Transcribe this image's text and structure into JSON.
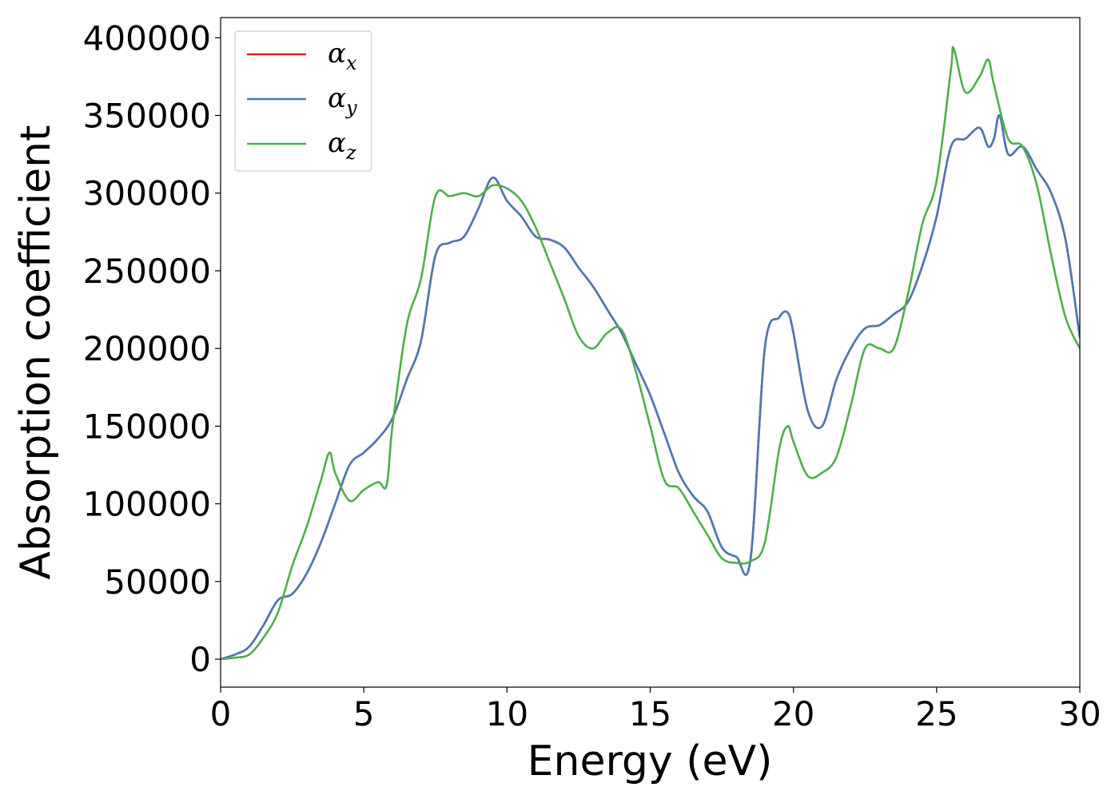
{
  "chart_data": {
    "type": "line",
    "xlabel": "Energy (eV)",
    "ylabel": "Absorption coefficient",
    "xlim": [
      0,
      30
    ],
    "ylim": [
      -18000,
      413000
    ],
    "xticks": [
      0,
      5,
      10,
      15,
      20,
      25,
      30
    ],
    "yticks": [
      0,
      50000,
      100000,
      150000,
      200000,
      250000,
      300000,
      350000,
      400000
    ],
    "grid": false,
    "legend": "top-left",
    "series": [
      {
        "name": "α_x",
        "label_main": "α",
        "label_sub": "x",
        "color": "#e41a1c",
        "x": [
          0,
          0.5,
          1,
          1.5,
          2,
          2.5,
          3,
          3.5,
          4,
          4.5,
          5,
          5.5,
          6,
          6.5,
          7,
          7.5,
          8,
          8.5,
          9,
          9.5,
          10,
          10.5,
          11,
          11.5,
          12,
          12.5,
          13,
          13.5,
          14,
          14.5,
          15,
          15.5,
          16,
          16.5,
          17,
          17.5,
          18,
          18.5,
          19,
          19.5,
          19.8,
          20,
          20.5,
          21,
          21.5,
          22,
          22.5,
          23,
          23.5,
          24,
          24.5,
          25,
          25.5,
          26,
          26.5,
          26.8,
          27,
          27.2,
          27.5,
          28,
          28.5,
          29,
          29.5,
          30
        ],
        "y": [
          0,
          3000,
          8000,
          22000,
          38000,
          42000,
          55000,
          75000,
          100000,
          125000,
          133000,
          142000,
          155000,
          180000,
          205000,
          260000,
          268000,
          272000,
          290000,
          310000,
          295000,
          285000,
          272000,
          270000,
          265000,
          252000,
          240000,
          225000,
          210000,
          190000,
          170000,
          145000,
          120000,
          105000,
          95000,
          72000,
          66000,
          64000,
          200000,
          220000,
          223000,
          210000,
          160000,
          150000,
          180000,
          200000,
          213000,
          215000,
          222000,
          230000,
          253000,
          285000,
          330000,
          335000,
          342000,
          330000,
          335000,
          350000,
          325000,
          330000,
          315000,
          300000,
          270000,
          207000
        ]
      },
      {
        "name": "α_y",
        "label_main": "α",
        "label_sub": "y",
        "color": "#4a7ab5",
        "x": [
          0,
          0.5,
          1,
          1.5,
          2,
          2.5,
          3,
          3.5,
          4,
          4.5,
          5,
          5.5,
          6,
          6.5,
          7,
          7.5,
          8,
          8.5,
          9,
          9.5,
          10,
          10.5,
          11,
          11.5,
          12,
          12.5,
          13,
          13.5,
          14,
          14.5,
          15,
          15.5,
          16,
          16.5,
          17,
          17.5,
          18,
          18.5,
          19,
          19.5,
          19.8,
          20,
          20.5,
          21,
          21.5,
          22,
          22.5,
          23,
          23.5,
          24,
          24.5,
          25,
          25.5,
          26,
          26.5,
          26.8,
          27,
          27.2,
          27.5,
          28,
          28.5,
          29,
          29.5,
          30
        ],
        "y": [
          0,
          3000,
          8000,
          22000,
          38000,
          42000,
          55000,
          75000,
          100000,
          125000,
          133000,
          142000,
          155000,
          180000,
          205000,
          260000,
          268000,
          272000,
          290000,
          310000,
          295000,
          285000,
          272000,
          270000,
          265000,
          252000,
          240000,
          225000,
          210000,
          190000,
          170000,
          145000,
          120000,
          105000,
          95000,
          72000,
          66000,
          64000,
          200000,
          220000,
          223000,
          210000,
          160000,
          150000,
          180000,
          200000,
          213000,
          215000,
          222000,
          230000,
          253000,
          285000,
          330000,
          335000,
          342000,
          330000,
          335000,
          350000,
          325000,
          330000,
          315000,
          300000,
          270000,
          207000
        ]
      },
      {
        "name": "α_z",
        "label_main": "α",
        "label_sub": "z",
        "color": "#4daf4a",
        "x": [
          0,
          0.5,
          1,
          1.5,
          2,
          2.5,
          3,
          3.5,
          3.8,
          4,
          4.5,
          5,
          5.5,
          5.8,
          6,
          6.5,
          7,
          7.5,
          8,
          8.5,
          9,
          9.5,
          10,
          10.5,
          11,
          11.5,
          12,
          12.5,
          13,
          13.5,
          14,
          14.5,
          15,
          15.5,
          16,
          16.5,
          17,
          17.5,
          18,
          18.5,
          19,
          19.5,
          19.8,
          20,
          20.5,
          21,
          21.5,
          22,
          22.5,
          23,
          23.5,
          24,
          24.5,
          25,
          25.5,
          25.6,
          26,
          26.5,
          26.8,
          27,
          27.5,
          28,
          28.5,
          29,
          29.5,
          30
        ],
        "y": [
          0,
          1000,
          3000,
          14000,
          30000,
          60000,
          85000,
          115000,
          133000,
          120000,
          102000,
          109000,
          114000,
          112000,
          150000,
          215000,
          245000,
          298000,
          298000,
          300000,
          298000,
          305000,
          303000,
          295000,
          278000,
          255000,
          232000,
          208000,
          200000,
          210000,
          212000,
          185000,
          150000,
          115000,
          110000,
          95000,
          80000,
          65000,
          62000,
          63000,
          75000,
          135000,
          150000,
          140000,
          118000,
          120000,
          130000,
          163000,
          200000,
          200000,
          200000,
          235000,
          280000,
          308000,
          380000,
          393000,
          365000,
          375000,
          386000,
          370000,
          335000,
          330000,
          305000,
          260000,
          220000,
          200000
        ]
      }
    ]
  }
}
